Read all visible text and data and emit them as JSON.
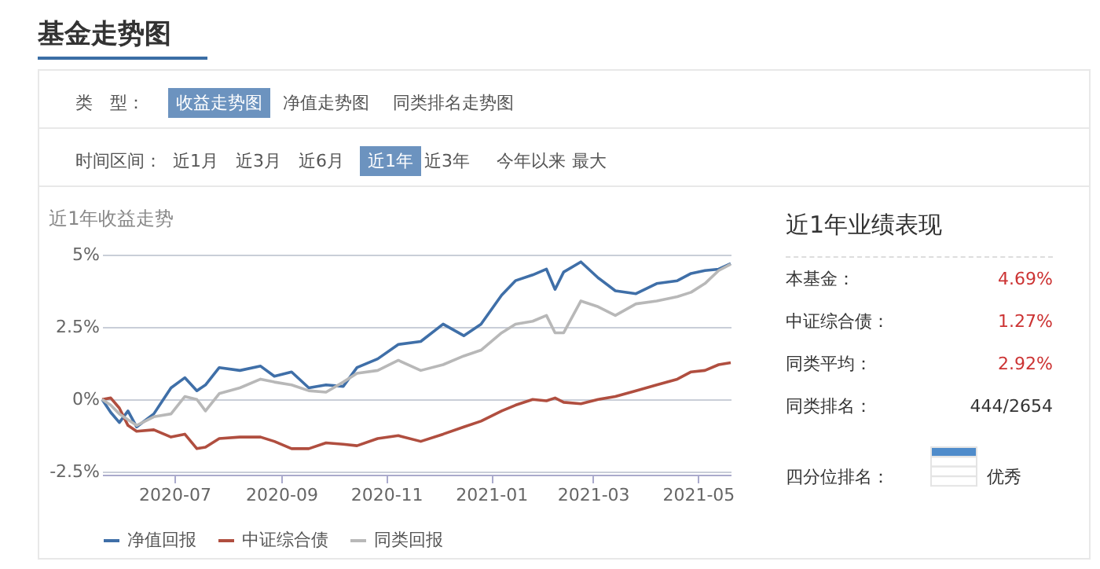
{
  "chart_data": [
    {
      "type": "other",
      "title": "基金走势图",
      "annotations": [
        "类　型：",
        "收益走势图",
        "净值走势图",
        "同类排名走势图",
        "时间区间：",
        "近1月",
        "近3月",
        "近6月",
        "近1年",
        "近3年",
        "今年以来",
        "最大"
      ]
    },
    {
      "type": "line",
      "title": "近1年收益走势",
      "x": [
        "2020-05-20",
        "2020-05-25",
        "2020-05-30",
        "2020-06-04",
        "2020-06-09",
        "2020-06-19",
        "2020-06-29",
        "2020-07-07",
        "2020-07-14",
        "2020-07-19",
        "2020-07-27",
        "2020-08-08",
        "2020-08-20",
        "2020-08-28",
        "2020-09-07",
        "2020-09-17",
        "2020-09-27",
        "2020-10-07",
        "2020-10-15",
        "2020-10-27",
        "2020-11-08",
        "2020-11-21",
        "2020-12-04",
        "2020-12-16",
        "2020-12-26",
        "2021-01-07",
        "2021-01-15",
        "2021-01-25",
        "2021-02-02",
        "2021-02-07",
        "2021-02-12",
        "2021-02-22",
        "2021-03-04",
        "2021-03-14",
        "2021-03-26",
        "2021-04-07",
        "2021-04-19",
        "2021-04-27",
        "2021-05-05",
        "2021-05-13",
        "2021-05-20"
      ],
      "series": [
        {
          "name": "净值回报",
          "color": "#3f6fa8",
          "values": [
            0,
            -0.45,
            -0.8,
            -0.4,
            -0.95,
            -0.5,
            0.4,
            0.75,
            0.3,
            0.5,
            1.1,
            1.0,
            1.15,
            0.8,
            0.95,
            0.4,
            0.5,
            0.45,
            1.1,
            1.4,
            1.9,
            2.0,
            2.6,
            2.2,
            2.6,
            3.6,
            4.1,
            4.3,
            4.5,
            3.8,
            4.4,
            4.75,
            4.2,
            3.75,
            3.65,
            4.0,
            4.1,
            4.35,
            4.45,
            4.5,
            4.69
          ]
        },
        {
          "name": "中证综合债",
          "color": "#b04e3f",
          "values": [
            0,
            0.05,
            -0.3,
            -0.9,
            -1.1,
            -1.05,
            -1.3,
            -1.2,
            -1.7,
            -1.65,
            -1.35,
            -1.3,
            -1.3,
            -1.45,
            -1.7,
            -1.7,
            -1.5,
            -1.55,
            -1.6,
            -1.35,
            -1.25,
            -1.45,
            -1.2,
            -0.95,
            -0.75,
            -0.4,
            -0.2,
            0.0,
            -0.05,
            0.05,
            -0.1,
            -0.15,
            0.0,
            0.1,
            0.3,
            0.5,
            0.7,
            0.95,
            1.0,
            1.2,
            1.27
          ]
        },
        {
          "name": "同类回报",
          "color": "#b8b8b8",
          "values": [
            0,
            -0.2,
            -0.5,
            -0.7,
            -0.9,
            -0.6,
            -0.5,
            0.1,
            0.0,
            -0.4,
            0.2,
            0.4,
            0.7,
            0.6,
            0.5,
            0.3,
            0.25,
            0.6,
            0.9,
            1.0,
            1.35,
            1.0,
            1.2,
            1.5,
            1.7,
            2.3,
            2.6,
            2.7,
            2.9,
            2.3,
            2.3,
            3.4,
            3.2,
            2.9,
            3.3,
            3.4,
            3.55,
            3.7,
            4.0,
            4.45,
            4.67
          ]
        }
      ],
      "xlim": [
        "2020-05-20",
        "2021-05-20"
      ],
      "xticks": [
        {
          "value": "2020-07-01",
          "label": "2020-07"
        },
        {
          "value": "2020-09-01",
          "label": "2020-09"
        },
        {
          "value": "2020-11-01",
          "label": "2020-11"
        },
        {
          "value": "2021-01-01",
          "label": "2021-01"
        },
        {
          "value": "2021-03-01",
          "label": "2021-03"
        },
        {
          "value": "2021-05-01",
          "label": "2021-05"
        }
      ],
      "ylim": [
        -2.6,
        5
      ],
      "yticks": [
        {
          "value": -2.5,
          "label": "-2.5%"
        },
        {
          "value": 0,
          "label": "0%"
        },
        {
          "value": 2.5,
          "label": "2.5%"
        },
        {
          "value": 5,
          "label": "5%"
        }
      ],
      "grid": "y",
      "legend": "bottom",
      "marker": "none",
      "line_style": "solid"
    },
    {
      "type": "other",
      "title": "近1年业绩表现",
      "annotations": [
        "本基金：",
        "4.69%",
        "中证综合债：",
        "1.27%",
        "同类平均：",
        "2.92%",
        "同类排名：",
        "444/2654",
        "四分位排名：",
        "优秀"
      ]
    }
  ]
}
